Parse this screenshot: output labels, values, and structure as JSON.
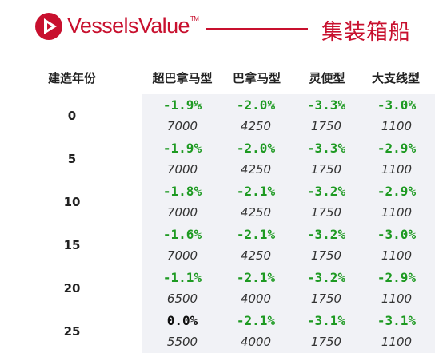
{
  "header": {
    "brand": "VesselsValue",
    "trademark": "TM",
    "title": "集装箱船",
    "brand_color": "#c8102e"
  },
  "table": {
    "columns": [
      "建造年份",
      "超巴拿马型",
      "巴拿马型",
      "灵便型",
      "大支线型"
    ],
    "rows": [
      {
        "age": "0",
        "pct": [
          "-1.9%",
          "-2.0%",
          "-3.3%",
          "-3.0%"
        ],
        "price": [
          "7000",
          "4250",
          "1750",
          "1100"
        ]
      },
      {
        "age": "5",
        "pct": [
          "-1.9%",
          "-2.0%",
          "-3.3%",
          "-2.9%"
        ],
        "price": [
          "7000",
          "4250",
          "1750",
          "1100"
        ]
      },
      {
        "age": "10",
        "pct": [
          "-1.8%",
          "-2.1%",
          "-3.2%",
          "-2.9%"
        ],
        "price": [
          "7000",
          "4250",
          "1750",
          "1100"
        ]
      },
      {
        "age": "15",
        "pct": [
          "-1.6%",
          "-2.1%",
          "-3.2%",
          "-3.0%"
        ],
        "price": [
          "7000",
          "4250",
          "1750",
          "1100"
        ]
      },
      {
        "age": "20",
        "pct": [
          "-1.1%",
          "-2.1%",
          "-3.2%",
          "-2.9%"
        ],
        "price": [
          "6500",
          "4000",
          "1750",
          "1100"
        ]
      },
      {
        "age": "25",
        "pct": [
          "0.0%",
          "-2.1%",
          "-3.1%",
          "-3.1%"
        ],
        "price": [
          "5500",
          "4000",
          "1750",
          "1100"
        ]
      }
    ],
    "negative_color": "#1e9a22",
    "zero_color": "#111111"
  }
}
